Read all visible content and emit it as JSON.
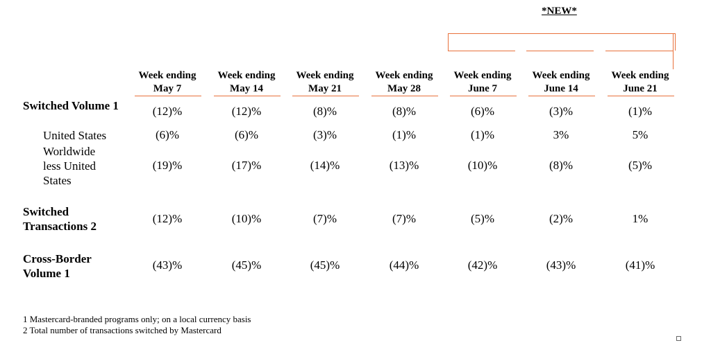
{
  "new_label": "*NEW*",
  "columns": [
    {
      "line1": "Week ending",
      "line2": "May 7"
    },
    {
      "line1": "Week ending",
      "line2": "May 14"
    },
    {
      "line1": "Week ending",
      "line2": "May 21"
    },
    {
      "line1": "Week ending",
      "line2": "May 28"
    },
    {
      "line1": "Week ending",
      "line2": "June 7"
    },
    {
      "line1": "Week ending",
      "line2": "June 14"
    },
    {
      "line1": "Week ending",
      "line2": "June 21"
    }
  ],
  "rows": [
    {
      "label": "Switched Volume 1",
      "values": [
        "(12)%",
        "(12)%",
        "(8)%",
        "(8)%",
        "(6)%",
        "(3)%",
        "(1)%"
      ]
    },
    {
      "label": "United States",
      "values": [
        "(6)%",
        "(6)%",
        "(3)%",
        "(1)%",
        "(1)%",
        "3%",
        "5%"
      ]
    },
    {
      "label": "Worldwide less United States",
      "values": [
        "(19)%",
        "(17)%",
        "(14)%",
        "(13)%",
        "(10)%",
        "(8)%",
        "(5)%"
      ]
    },
    {
      "label": "Switched Transactions 2",
      "values": [
        "(12)%",
        "(10)%",
        "(7)%",
        "(7)%",
        "(5)%",
        "(2)%",
        "1%"
      ]
    },
    {
      "label": "Cross-Border Volume 1",
      "values": [
        "(43)%",
        "(45)%",
        "(45)%",
        "(44)%",
        "(42)%",
        "(43)%",
        "(41)%"
      ]
    }
  ],
  "footnotes": [
    "1 Mastercard-branded programs only; on a local currency basis",
    "2 Total number of transactions switched by Mastercard"
  ]
}
